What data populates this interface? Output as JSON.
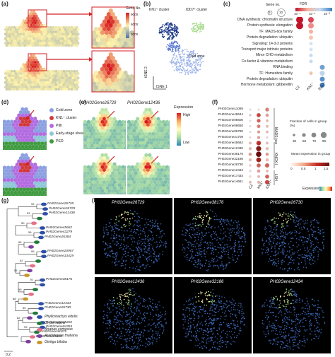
{
  "panel_labels": {
    "a": "(a)",
    "b": "(b)",
    "c": "(c)",
    "d": "(d)",
    "e": "(e)",
    "f": "(f)",
    "g": "(g)",
    "h": "(h)"
  },
  "panel_a": {
    "legend_title": "Gene No.",
    "legend_ticks": [
      "9000",
      "6000",
      "3000"
    ],
    "colors": [
      "#4a6fb5",
      "#fff3a6",
      "#d7191c"
    ]
  },
  "panel_b": {
    "kn1_label": "KN1⁺ cluster",
    "idd7_label": "IDD7⁺ cluster",
    "cold_label": "Cold zone",
    "xlabel": "tSNE 1",
    "ylabel": "tSNE 2"
  },
  "panel_c": {
    "size_legend_title": "Gene no.",
    "size_legend_values": [
      "5",
      "10"
    ],
    "fdr_title": "FDR",
    "fdr_ticks": [
      "10⁻⁹",
      "10⁻⁶",
      "10⁻³"
    ],
    "columns": [
      "CZ",
      "KN1⁺",
      "IDD7⁺"
    ],
    "rows": [
      "DNA synthesis: chromatin structure",
      "Protein synthesis: elongation",
      "TF: MADS-box family",
      "Protein degradation: ubiquitin",
      "Signaling: 14-3-3 proteins",
      "Transport major intrinsic proteins",
      "Minor CHO metabolism",
      "Co-factor & vitamine metabolism",
      "RNA binding",
      "TF: Homeobox family",
      "Protein degradation: ubiquitin",
      "Hormone metabolism: gibberellin"
    ]
  },
  "panel_d": {
    "legend": [
      {
        "label": "Cold zone",
        "color": "#8b9fe0"
      },
      {
        "label": "KN1⁺ cluster",
        "color": "#d13a3a"
      },
      {
        "label": "Pith",
        "color": "#b36be0"
      },
      {
        "label": "Early-stage sheath",
        "color": "#8ec6d8"
      },
      {
        "label": "PED",
        "color": "#3f9a3f"
      }
    ]
  },
  "panel_e": {
    "gene1": "PH02Gene26729",
    "gene2": "PH02Gene12436",
    "legend_title": "Expression",
    "legend_high": "High",
    "legend_low": "Low"
  },
  "panel_f": {
    "genes": [
      "PH02Gene11089",
      "PH02Gene49644",
      "PH02Gene08606",
      "PH02Gene08650",
      "PH02Gene05780",
      "PH02Gene41709",
      "PH02Gene45662",
      "PH02Gene12436",
      "PH02Gene38176",
      "PH02Gene32186",
      "PH02Gene26730",
      "PH02Gene12434",
      "PH02Gene17434",
      "PH02Gene14661"
    ],
    "columns": [
      "CZ",
      "KN1⁺",
      "IDD7⁺"
    ],
    "groups": [
      "MADS-box",
      "KNOX-I",
      "LSH"
    ],
    "frac_title": "Fraction of cells in group (%)",
    "frac_values": [
      "30",
      "50",
      "70",
      "90"
    ],
    "mean_title": "Mean expression in group",
    "mean_ticks": [
      "0",
      "0.5",
      "1",
      "1.5"
    ],
    "expression_label": "Expression"
  },
  "panel_g": {
    "bootstrap": [
      "99",
      "53",
      "50",
      "59",
      "65",
      "99",
      "62",
      "55",
      "76",
      "99",
      "88",
      "55",
      "82",
      "99"
    ],
    "leaves": [
      "PH02Gene26728",
      "PH02Gene26729",
      "PH02Gene12436",
      "PH02Gene45662",
      "PH02Gene43279",
      "PH02Gene26384",
      "PH02Gene20967",
      "PH02Gene13429",
      "PH02Gene38176",
      "PH02Gene12434",
      "PH02Gene26730",
      "PH02Gene25222",
      "PH02Gene04354",
      "PH02Gene31875",
      "PH02Gene25890"
    ],
    "legend": [
      {
        "label": "Phyllostachys edulis",
        "color": "#2e4fa8"
      },
      {
        "label": "Oryza sativa",
        "color": "#1f7a3a"
      },
      {
        "label": "Ananas comosus",
        "color": "#e86f88"
      },
      {
        "label": "Arabidopsis thaliana",
        "color": "#7c3f9e"
      },
      {
        "label": "Ginkgo biloba",
        "color": "#c9962b"
      }
    ],
    "scale": "0.2"
  },
  "panel_h": {
    "genes": [
      "PH02Gene26729",
      "PH02Gene38176",
      "PH02Gene26730",
      "PH02Gene12436",
      "PH02Gene32186",
      "PH02Gene12434"
    ]
  }
}
